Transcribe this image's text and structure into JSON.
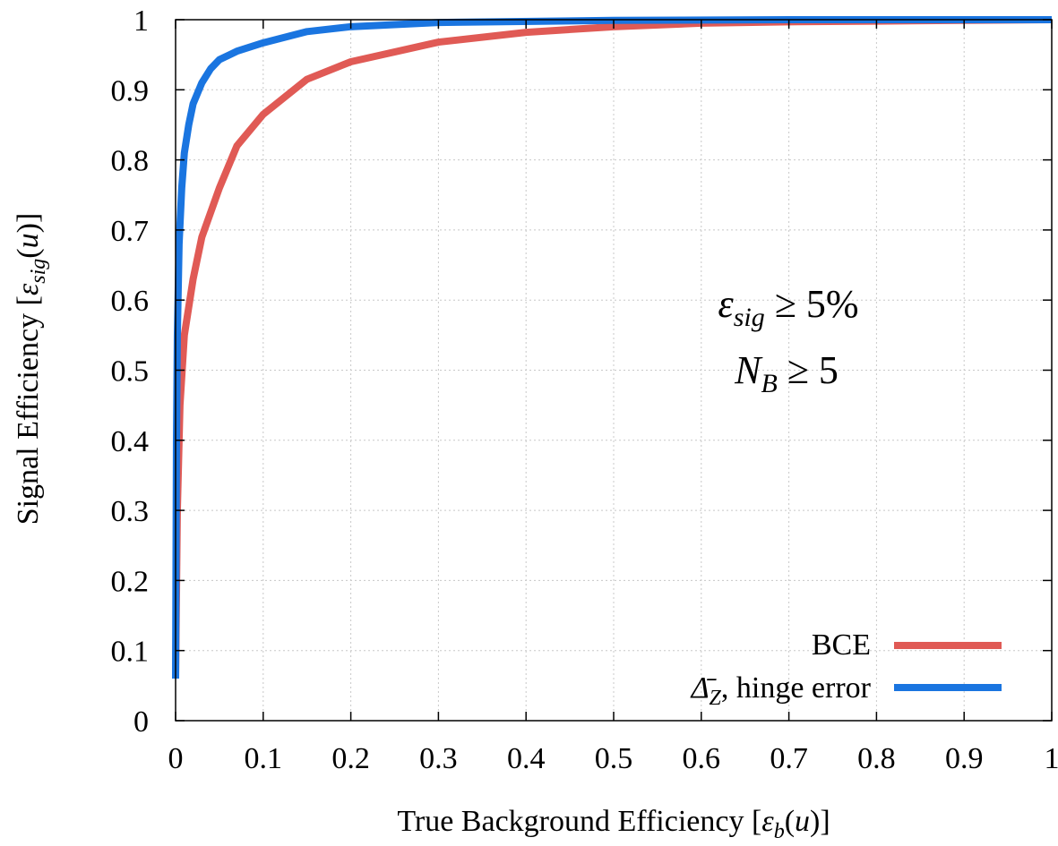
{
  "chart_data": {
    "type": "line",
    "xlabel": "True Background Efficiency [εb(u)]",
    "ylabel": "Signal Efficiency [εsig(u)]",
    "xlim": [
      0,
      1
    ],
    "ylim": [
      0,
      1
    ],
    "xticks": [
      "0",
      "0.1",
      "0.2",
      "0.3",
      "0.4",
      "0.5",
      "0.6",
      "0.7",
      "0.8",
      "0.9",
      "1"
    ],
    "yticks": [
      "0",
      "0.1",
      "0.2",
      "0.3",
      "0.4",
      "0.5",
      "0.6",
      "0.7",
      "0.8",
      "0.9",
      "1"
    ],
    "grid": true,
    "legend_position": "bottom-right",
    "annotations": [
      "εsig ≥ 5%",
      "NB ≥ 5"
    ],
    "series": [
      {
        "name": "BCE",
        "color": "#e05a55",
        "x": [
          0.0,
          0.002,
          0.005,
          0.01,
          0.02,
          0.03,
          0.05,
          0.07,
          0.1,
          0.15,
          0.2,
          0.3,
          0.4,
          0.5,
          0.6,
          0.7,
          0.8,
          0.9,
          1.0
        ],
        "y": [
          0.06,
          0.3,
          0.45,
          0.55,
          0.63,
          0.69,
          0.76,
          0.82,
          0.865,
          0.915,
          0.94,
          0.968,
          0.982,
          0.99,
          0.995,
          0.997,
          0.998,
          0.999,
          1.0
        ]
      },
      {
        "name": "Δ̄Z, hinge error",
        "color": "#1a75e0",
        "x": [
          0.0,
          0.001,
          0.002,
          0.004,
          0.007,
          0.01,
          0.015,
          0.02,
          0.03,
          0.04,
          0.05,
          0.07,
          0.1,
          0.15,
          0.2,
          0.3,
          0.5,
          0.7,
          1.0
        ],
        "y": [
          0.06,
          0.4,
          0.55,
          0.68,
          0.76,
          0.81,
          0.85,
          0.88,
          0.91,
          0.93,
          0.943,
          0.955,
          0.967,
          0.983,
          0.99,
          0.996,
          0.999,
          1.0,
          1.0
        ]
      }
    ]
  }
}
